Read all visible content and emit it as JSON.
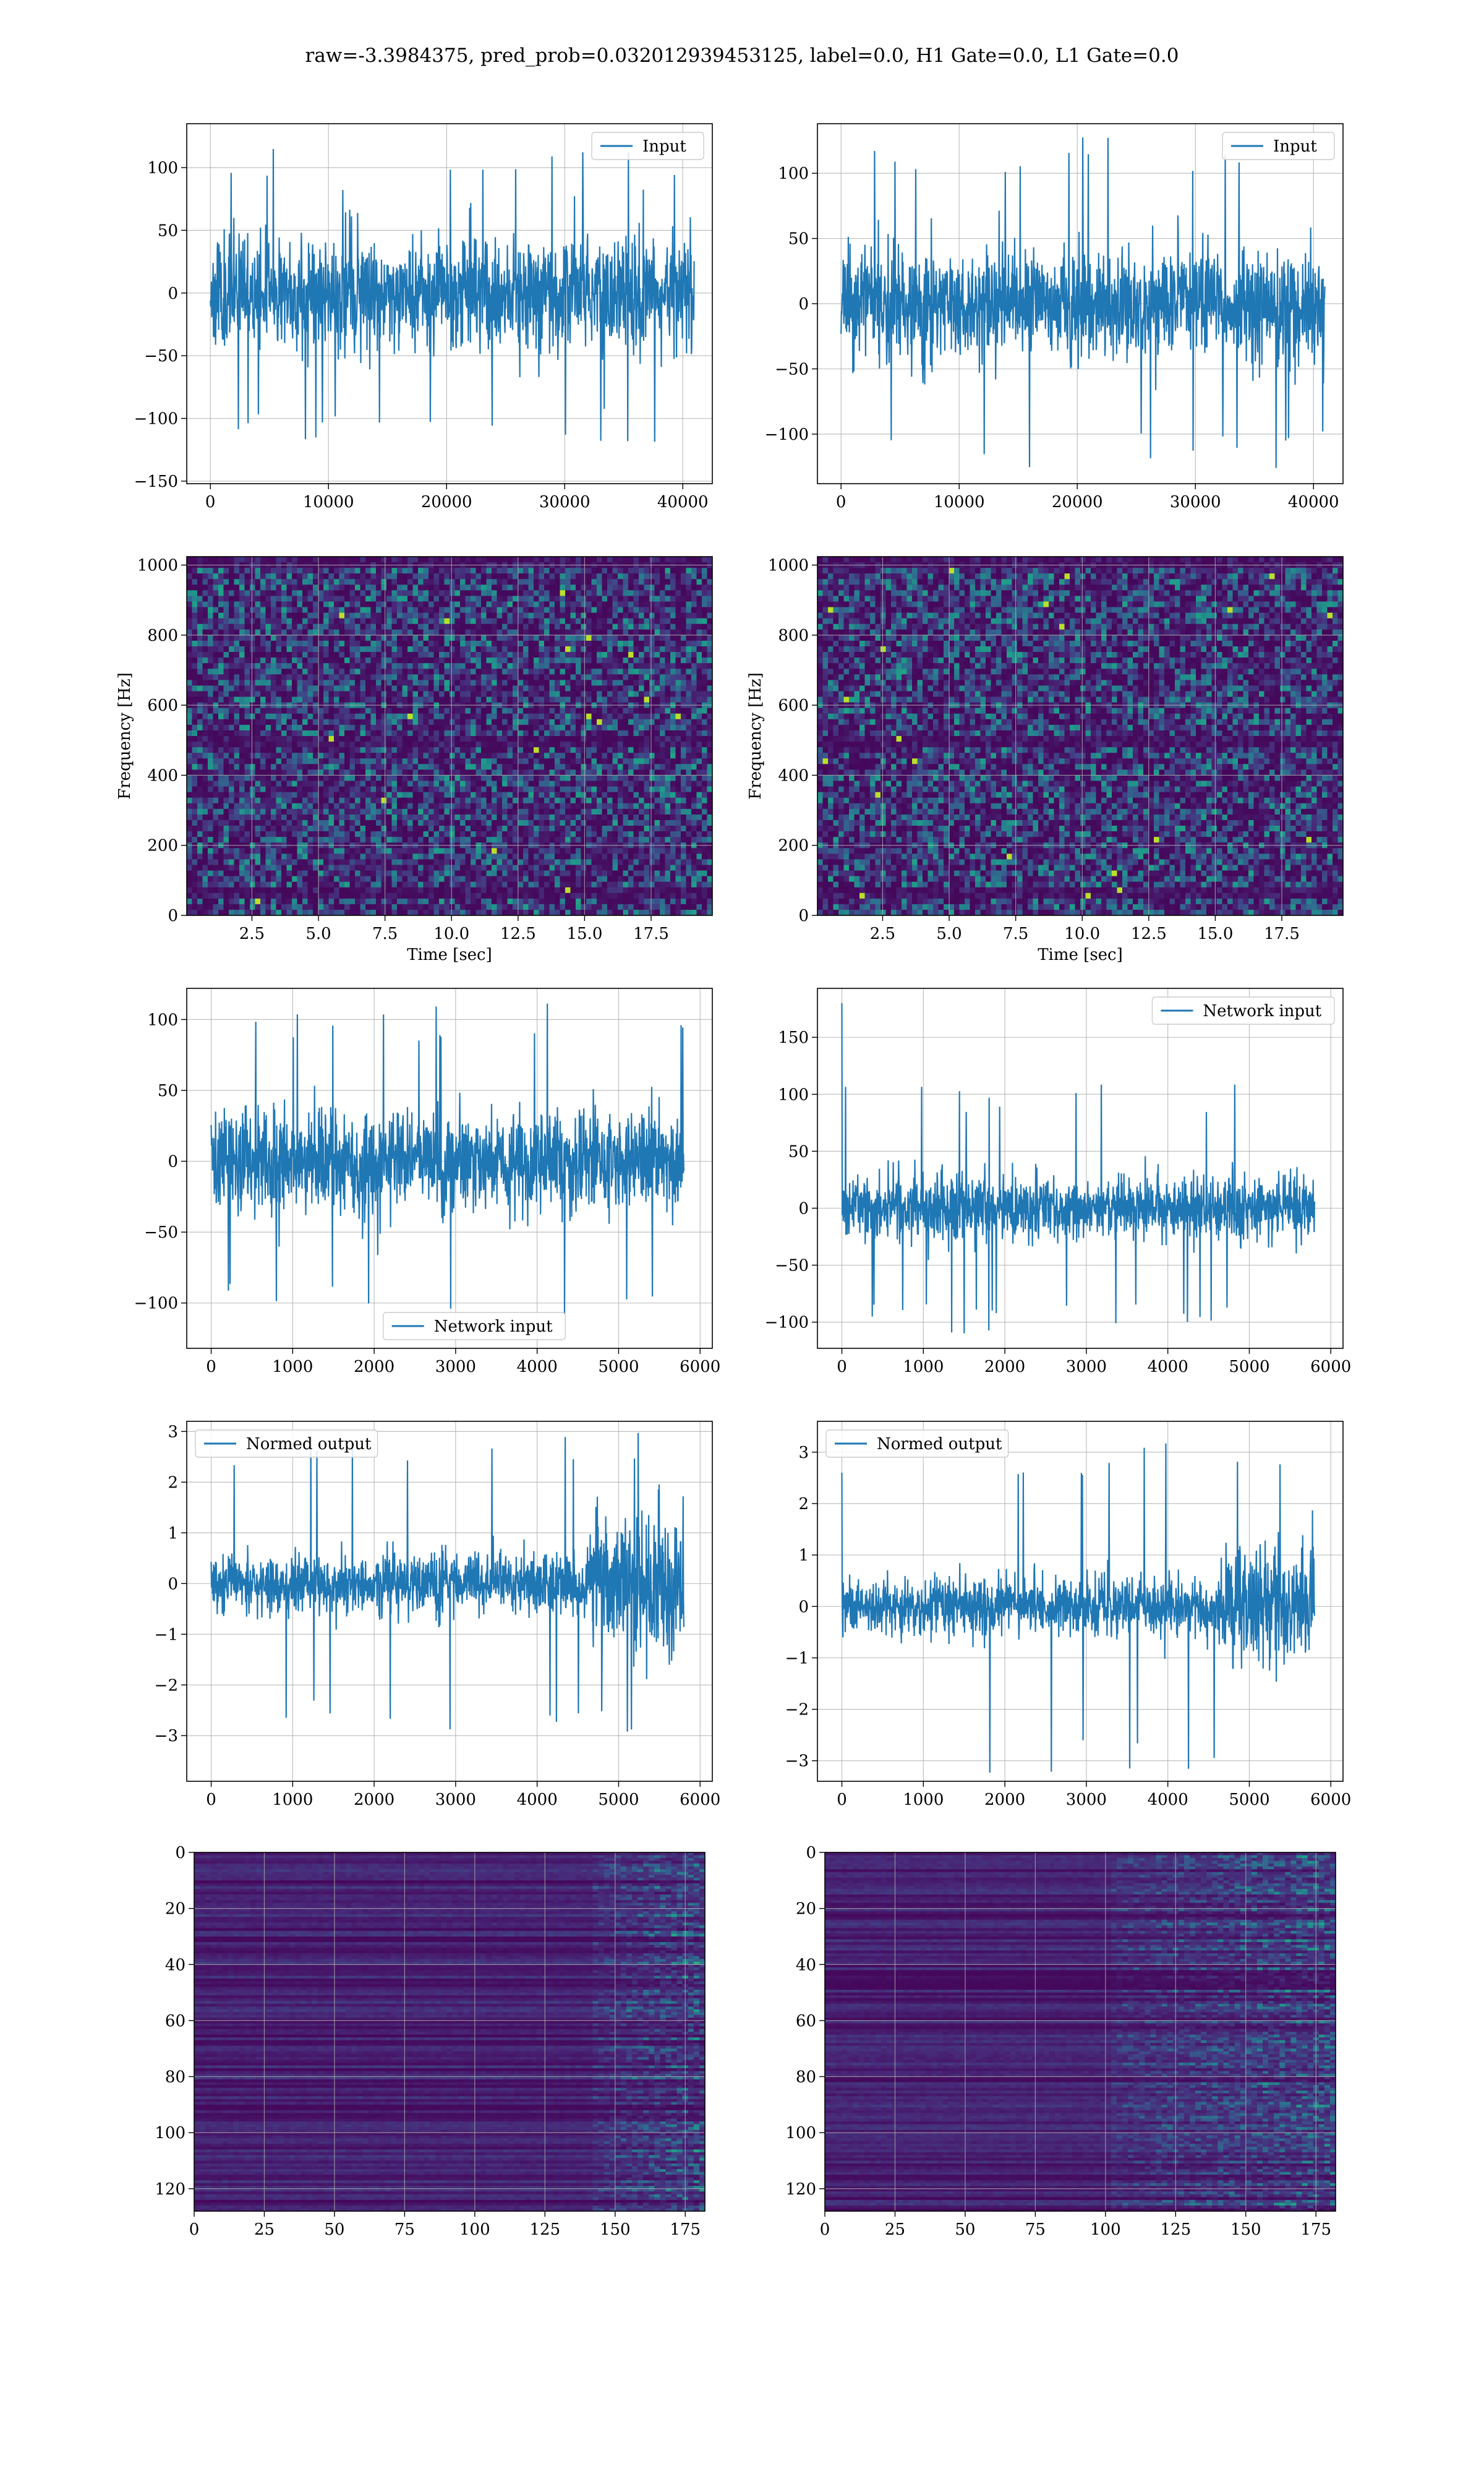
{
  "figure_title": "raw=-3.3984375, pred_prob=0.032012939453125, label=0.0, H1 Gate=0.0, L1 Gate=0.0",
  "colors": {
    "series": "#1f77b4",
    "grid": "#b0b0b0",
    "viridis_low": "#440154",
    "viridis_high": "#fde725"
  },
  "chart_data": [
    {
      "id": "input-left",
      "type": "line",
      "legend": "Input",
      "legend_position": "upper right",
      "xlim": [
        -2000,
        42500
      ],
      "ylim": [
        -152,
        135
      ],
      "xticks": [
        0,
        10000,
        20000,
        30000,
        40000
      ],
      "yticks": [
        -150,
        -100,
        -50,
        0,
        50,
        100
      ],
      "xlabel": "",
      "ylabel": "",
      "grid": true,
      "signal": {
        "x_start": 0,
        "x_end": 40960,
        "envelope": [
          0,
          0,
          0,
          0
        ],
        "spread": 40,
        "peak": 122,
        "seed": 11
      }
    },
    {
      "id": "input-right",
      "type": "line",
      "legend": "Input",
      "legend_position": "upper right",
      "xlim": [
        -2000,
        42500
      ],
      "ylim": [
        -138,
        138
      ],
      "xticks": [
        0,
        10000,
        20000,
        30000,
        40000
      ],
      "yticks": [
        -100,
        -50,
        0,
        50,
        100
      ],
      "xlabel": "",
      "ylabel": "",
      "grid": true,
      "signal": {
        "x_start": 0,
        "x_end": 40960,
        "envelope": [
          0,
          0,
          0,
          0
        ],
        "spread": 38,
        "peak": 128,
        "seed": 23
      }
    },
    {
      "id": "spectrogram-left",
      "type": "heatmap",
      "xlim": [
        0.05,
        19.8
      ],
      "ylim": [
        0,
        1024
      ],
      "xticks": [
        2.5,
        5.0,
        7.5,
        10.0,
        12.5,
        15.0,
        17.5
      ],
      "yticks": [
        0,
        200,
        400,
        600,
        800,
        1000
      ],
      "xlabel": "Time [sec]",
      "ylabel": "Frequency [Hz]",
      "grid": true,
      "colormap": "viridis",
      "seed": 5,
      "dark_bands": [
        1010,
        500,
        60
      ]
    },
    {
      "id": "spectrogram-right",
      "type": "heatmap",
      "xlim": [
        0.05,
        19.8
      ],
      "ylim": [
        0,
        1024
      ],
      "xticks": [
        2.5,
        5.0,
        7.5,
        10.0,
        12.5,
        15.0,
        17.5
      ],
      "yticks": [
        0,
        200,
        400,
        600,
        800,
        1000
      ],
      "xlabel": "Time [sec]",
      "ylabel": "Frequency [Hz]",
      "grid": true,
      "colormap": "viridis",
      "seed": 9,
      "dark_bands": [
        1010,
        500,
        60
      ]
    },
    {
      "id": "network-input-left",
      "type": "line",
      "legend": "Network input",
      "legend_position": "lower center",
      "xlim": [
        -300,
        6150
      ],
      "ylim": [
        -132,
        122
      ],
      "xticks": [
        0,
        1000,
        2000,
        3000,
        4000,
        5000,
        6000
      ],
      "yticks": [
        -100,
        -50,
        0,
        50,
        100
      ],
      "xlabel": "",
      "ylabel": "",
      "grid": true,
      "signal": {
        "x_start": 0,
        "x_end": 5800,
        "envelope": [
          0,
          0,
          0,
          0
        ],
        "spread": 33,
        "peak": 112,
        "seed": 31
      }
    },
    {
      "id": "network-input-right",
      "type": "line",
      "legend": "Network input",
      "legend_position": "upper right",
      "xlim": [
        -300,
        6150
      ],
      "ylim": [
        -123,
        193
      ],
      "xticks": [
        0,
        1000,
        2000,
        3000,
        4000,
        5000,
        6000
      ],
      "yticks": [
        -100,
        -50,
        0,
        50,
        100,
        150
      ],
      "xlabel": "",
      "ylabel": "",
      "grid": true,
      "signal": {
        "x_start": 0,
        "x_end": 5800,
        "envelope": [
          0,
          0,
          0,
          0
        ],
        "spread": 25,
        "peak": 112,
        "seed": 47,
        "initial_spike": 180
      }
    },
    {
      "id": "normed-output-left",
      "type": "line",
      "legend": "Normed output",
      "legend_position": "upper left",
      "xlim": [
        -300,
        6150
      ],
      "ylim": [
        -3.9,
        3.2
      ],
      "xticks": [
        0,
        1000,
        2000,
        3000,
        4000,
        5000,
        6000
      ],
      "yticks": [
        -3,
        -2,
        -1,
        0,
        1,
        2,
        3
      ],
      "xlabel": "",
      "ylabel": "",
      "grid": true,
      "signal": {
        "x_start": 0,
        "x_end": 5800,
        "spread": 0.55,
        "peak": 3.0,
        "seed": 53,
        "burst_start": 4650,
        "burst_spread": 1.15
      }
    },
    {
      "id": "normed-output-right",
      "type": "line",
      "legend": "Normed output",
      "legend_position": "upper left",
      "xlim": [
        -300,
        6150
      ],
      "ylim": [
        -3.4,
        3.6
      ],
      "xticks": [
        0,
        1000,
        2000,
        3000,
        4000,
        5000,
        6000
      ],
      "yticks": [
        -3,
        -2,
        -1,
        0,
        1,
        2,
        3
      ],
      "xlabel": "",
      "ylabel": "",
      "grid": true,
      "signal": {
        "x_start": 0,
        "x_end": 5800,
        "spread": 0.5,
        "peak": 3.3,
        "seed": 61,
        "burst_start": 4650,
        "burst_spread": 1.05,
        "initial_spike": 2.6
      }
    },
    {
      "id": "feature-map-left",
      "type": "heatmap",
      "xlim": [
        0,
        182
      ],
      "ylim": [
        128,
        0
      ],
      "xticks": [
        0,
        25,
        50,
        75,
        100,
        125,
        150,
        175
      ],
      "yticks": [
        0,
        20,
        40,
        60,
        80,
        100,
        120
      ],
      "xlabel": "",
      "ylabel": "",
      "grid": true,
      "colormap": "viridis",
      "seed": 71,
      "active_from": 140
    },
    {
      "id": "feature-map-right",
      "type": "heatmap",
      "xlim": [
        0,
        182
      ],
      "ylim": [
        128,
        0
      ],
      "xticks": [
        0,
        25,
        50,
        75,
        100,
        125,
        150,
        175
      ],
      "yticks": [
        0,
        20,
        40,
        60,
        80,
        100,
        120
      ],
      "xlabel": "",
      "ylabel": "",
      "grid": true,
      "colormap": "viridis",
      "seed": 83,
      "active_from": 100
    }
  ]
}
